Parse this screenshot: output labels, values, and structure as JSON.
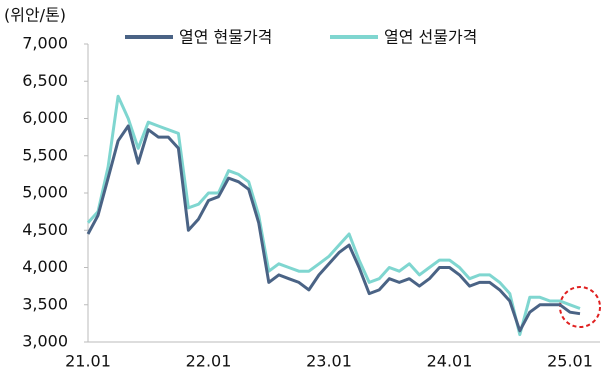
{
  "chart_data": {
    "type": "line",
    "unit_label": "(위안/톤)",
    "categories": [
      "21.01",
      null,
      null,
      null,
      null,
      null,
      null,
      null,
      null,
      null,
      null,
      null,
      "22.01",
      null,
      null,
      null,
      null,
      null,
      null,
      null,
      null,
      null,
      null,
      null,
      "23.01",
      null,
      null,
      null,
      null,
      null,
      null,
      null,
      null,
      null,
      null,
      null,
      "24.01",
      null,
      null,
      null,
      null,
      null,
      null,
      null,
      null,
      null,
      null,
      null,
      "25.01",
      null
    ],
    "series": [
      {
        "name": "열연 현물가격",
        "color": "#4a6385",
        "values": [
          4450,
          4700,
          5200,
          5700,
          5900,
          5400,
          5850,
          5750,
          5750,
          5600,
          4500,
          4650,
          4900,
          4950,
          5200,
          5150,
          5050,
          4600,
          3800,
          3900,
          3850,
          3800,
          3700,
          3900,
          4050,
          4200,
          4300,
          4000,
          3650,
          3700,
          3850,
          3800,
          3850,
          3750,
          3850,
          4000,
          4000,
          3900,
          3750,
          3800,
          3800,
          3700,
          3550,
          3150,
          3400,
          3500,
          3500,
          3500,
          3400,
          3380
        ]
      },
      {
        "name": "열연 선물가격",
        "color": "#7fd6d0",
        "values": [
          4600,
          4750,
          5350,
          6300,
          6000,
          5600,
          5950,
          5900,
          5850,
          5800,
          4800,
          4850,
          5000,
          5000,
          5300,
          5250,
          5150,
          4700,
          3950,
          4050,
          4000,
          3950,
          3950,
          4050,
          4150,
          4300,
          4450,
          4100,
          3800,
          3850,
          4000,
          3950,
          4050,
          3900,
          4000,
          4100,
          4100,
          4000,
          3850,
          3900,
          3900,
          3800,
          3650,
          3100,
          3600,
          3600,
          3550,
          3550,
          3500,
          3450
        ]
      }
    ],
    "ylim": [
      3000,
      7000
    ],
    "yticks": [
      {
        "value": 3000,
        "label": "3,000"
      },
      {
        "value": 3500,
        "label": "3,500"
      },
      {
        "value": 4000,
        "label": "4,000"
      },
      {
        "value": 4500,
        "label": "4,500"
      },
      {
        "value": 5000,
        "label": "5,000"
      },
      {
        "value": 5500,
        "label": "5,500"
      },
      {
        "value": 6000,
        "label": "6,000"
      },
      {
        "value": 6500,
        "label": "6,500"
      },
      {
        "value": 7000,
        "label": "7,000"
      }
    ],
    "grid": false,
    "legend": "top"
  }
}
